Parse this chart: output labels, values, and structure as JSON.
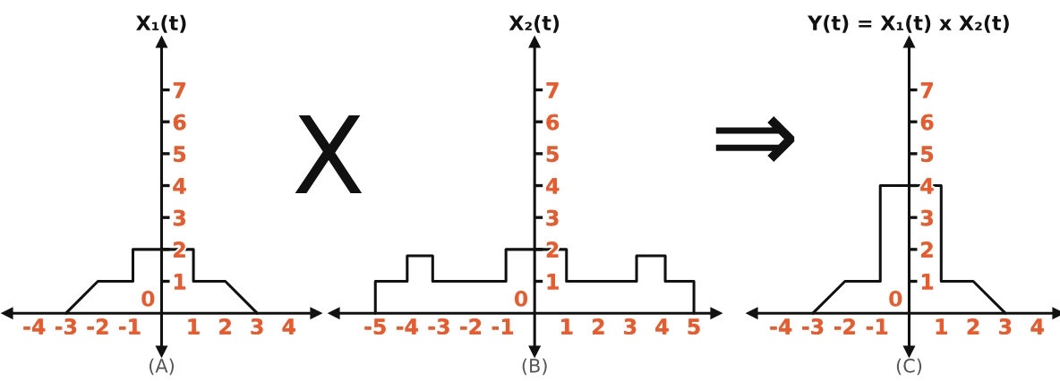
{
  "chart_data": [
    {
      "type": "line",
      "ylabel": "X₁(t)",
      "xlabel": "(A)",
      "x": [
        -3,
        -2,
        -0.9,
        -0.9,
        1,
        1,
        2,
        3
      ],
      "series": [
        {
          "color": "#111111",
          "values": [
            0,
            1,
            1,
            2,
            2,
            1,
            1,
            0
          ]
        }
      ],
      "xlim": [
        -4.85,
        4.85
      ],
      "ylim": [
        -1.2,
        8.5
      ],
      "xticks": [
        -4,
        -3,
        -2,
        -1,
        1,
        2,
        3,
        4
      ],
      "yticks": [
        1,
        2,
        3,
        4,
        5,
        6,
        7
      ],
      "annotations": [
        "0"
      ]
    },
    {
      "type": "other",
      "annotations": [
        "X"
      ]
    },
    {
      "type": "line",
      "ylabel": "X₂(t)",
      "xlabel": "(B)",
      "x": [
        -5,
        -5,
        -4,
        -4,
        -3.2,
        -3.2,
        -0.9,
        -0.9,
        1,
        1,
        3.2,
        3.2,
        4.1,
        4.1,
        5,
        5
      ],
      "series": [
        {
          "color": "#111111",
          "values": [
            0,
            1,
            1,
            1.8,
            1.8,
            1,
            1,
            2,
            2,
            1,
            1,
            1.8,
            1.8,
            1,
            1,
            0
          ]
        }
      ],
      "xlim": [
        -6.3,
        5.7
      ],
      "ylim": [
        -1.2,
        8.5
      ],
      "xticks": [
        -5,
        -4,
        -3,
        -2,
        -1,
        1,
        2,
        3,
        4,
        5
      ],
      "yticks": [
        1,
        2,
        3,
        4,
        5,
        6,
        7
      ],
      "annotations": [
        "0"
      ]
    },
    {
      "type": "other",
      "annotations": [
        "⇒"
      ]
    },
    {
      "type": "line",
      "ylabel": "Y(t) = X₁(t) x X₂(t)",
      "xlabel": "(C)",
      "x": [
        -3,
        -2,
        -0.9,
        -0.9,
        1,
        1,
        2,
        3
      ],
      "series": [
        {
          "color": "#111111",
          "values": [
            0,
            1,
            1,
            4,
            4,
            1,
            1,
            0
          ]
        }
      ],
      "xlim": [
        -4.9,
        4.65
      ],
      "ylim": [
        -1.2,
        8.5
      ],
      "xticks": [
        -4,
        -3,
        -2,
        -1,
        1,
        2,
        3,
        4
      ],
      "yticks": [
        1,
        2,
        3,
        4,
        5,
        6,
        7
      ],
      "annotations": [
        "0"
      ]
    }
  ]
}
